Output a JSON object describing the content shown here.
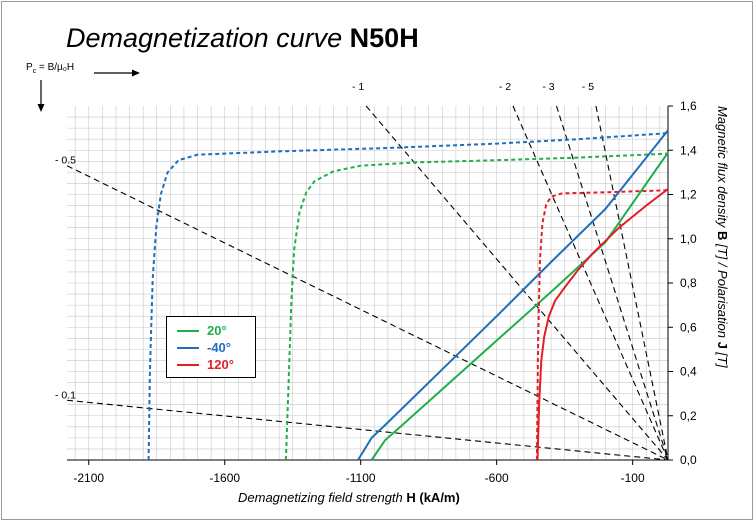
{
  "title": {
    "main": "Demagnetization curve",
    "grade": "N50H"
  },
  "permeance_axis_label": {
    "prefix": "P",
    "sub": "c",
    "rest": " = B/µ₀H"
  },
  "colors": {
    "20": "#1fae4b",
    "-40": "#1f6fb8",
    "120": "#e41e26",
    "load_lines": "#000000",
    "grid": "#c8c8c8"
  },
  "chart_data": {
    "type": "line",
    "title": "Demagnetization curve N50H",
    "xlabel": {
      "prefix": "Demagnetizing field strength ",
      "bold": "H",
      "suffix": " (kA/m)"
    },
    "ylabel": {
      "prefix": "Magnetic flux density ",
      "bold1": "B",
      "mid": " [T] / Polarisation ",
      "bold2": "J",
      "suffix": " [T]"
    },
    "xlim": [
      -2180,
      30
    ],
    "ylim": [
      0,
      1.6
    ],
    "x_ticks": [
      {
        "value": -2100,
        "label": "-2100"
      },
      {
        "value": -1600,
        "label": "-1600"
      },
      {
        "value": -1100,
        "label": "-1100"
      },
      {
        "value": -600,
        "label": "-600"
      },
      {
        "value": -100,
        "label": "-100"
      }
    ],
    "y_ticks": [
      {
        "value": 0,
        "label": "0,0"
      },
      {
        "value": 0.2,
        "label": "0,2"
      },
      {
        "value": 0.4,
        "label": "0,4"
      },
      {
        "value": 0.6,
        "label": "0,6"
      },
      {
        "value": 0.8,
        "label": "0,8"
      },
      {
        "value": 1.0,
        "label": "1,0"
      },
      {
        "value": 1.2,
        "label": "1,2"
      },
      {
        "value": 1.4,
        "label": "1,4"
      },
      {
        "value": 1.6,
        "label": "1,6"
      }
    ],
    "grid": true,
    "legend": {
      "position": "left-middle",
      "entries": [
        "20°",
        "-40°",
        "120°"
      ]
    },
    "series": [
      {
        "name": "20°",
        "colorKey": "20",
        "kind": "B",
        "dash": false,
        "points": [
          [
            -1060,
            0
          ],
          [
            -1010,
            0.09
          ],
          [
            -950,
            0.155
          ],
          [
            -800,
            0.32
          ],
          [
            -600,
            0.54
          ],
          [
            -400,
            0.76
          ],
          [
            -200,
            0.985
          ],
          [
            30,
            1.39
          ]
        ]
      },
      {
        "name": "20°",
        "colorKey": "20",
        "kind": "J",
        "dash": true,
        "points": [
          [
            -1375,
            0
          ],
          [
            -1365,
            0.35
          ],
          [
            -1355,
            0.72
          ],
          [
            -1345,
            0.95
          ],
          [
            -1325,
            1.12
          ],
          [
            -1300,
            1.21
          ],
          [
            -1270,
            1.26
          ],
          [
            -1200,
            1.305
          ],
          [
            -1100,
            1.33
          ],
          [
            -900,
            1.345
          ],
          [
            -600,
            1.355
          ],
          [
            -300,
            1.367
          ],
          [
            0,
            1.383
          ],
          [
            30,
            1.385
          ]
        ]
      },
      {
        "name": "-40°",
        "colorKey": "-40",
        "kind": "B",
        "dash": false,
        "points": [
          [
            -1110,
            0
          ],
          [
            -1060,
            0.1
          ],
          [
            -1000,
            0.17
          ],
          [
            -800,
            0.41
          ],
          [
            -600,
            0.65
          ],
          [
            -400,
            0.895
          ],
          [
            -200,
            1.135
          ],
          [
            30,
            1.49
          ]
        ]
      },
      {
        "name": "-40°",
        "colorKey": "-40",
        "kind": "J",
        "dash": true,
        "points": [
          [
            -1880,
            0
          ],
          [
            -1875,
            0.4
          ],
          [
            -1865,
            0.82
          ],
          [
            -1852,
            1.05
          ],
          [
            -1835,
            1.2
          ],
          [
            -1810,
            1.3
          ],
          [
            -1770,
            1.355
          ],
          [
            -1700,
            1.38
          ],
          [
            -1400,
            1.395
          ],
          [
            -1000,
            1.41
          ],
          [
            -600,
            1.43
          ],
          [
            -300,
            1.45
          ],
          [
            0,
            1.475
          ],
          [
            30,
            1.478
          ]
        ]
      },
      {
        "name": "120°",
        "colorKey": "120",
        "kind": "B",
        "dash": false,
        "points": [
          [
            -450,
            0
          ],
          [
            -444,
            0.25
          ],
          [
            -436,
            0.45
          ],
          [
            -425,
            0.56
          ],
          [
            -408,
            0.65
          ],
          [
            -385,
            0.72
          ],
          [
            -350,
            0.78
          ],
          [
            -300,
            0.86
          ],
          [
            -250,
            0.93
          ],
          [
            -150,
            1.05
          ],
          [
            -50,
            1.15
          ],
          [
            30,
            1.225
          ]
        ]
      },
      {
        "name": "120°",
        "colorKey": "120",
        "kind": "J",
        "dash": true,
        "points": [
          [
            -452,
            0
          ],
          [
            -448,
            0.5
          ],
          [
            -441,
            0.9
          ],
          [
            -432,
            1.07
          ],
          [
            -418,
            1.155
          ],
          [
            -400,
            1.19
          ],
          [
            -360,
            1.205
          ],
          [
            -200,
            1.21
          ],
          [
            0,
            1.218
          ],
          [
            30,
            1.22
          ]
        ]
      }
    ],
    "load_lines": [
      {
        "label": "- 0.5",
        "label_side": "left",
        "points": [
          [
            -2180,
            1.33
          ],
          [
            30,
            0
          ]
        ]
      },
      {
        "label": "- 0.1",
        "label_side": "left",
        "points": [
          [
            -2180,
            0.27
          ],
          [
            30,
            0
          ]
        ]
      },
      {
        "label": "- 1",
        "label_side": "top",
        "points": [
          [
            -1080,
            1.6
          ],
          [
            30,
            0
          ]
        ]
      },
      {
        "label": "- 2",
        "label_side": "top",
        "points": [
          [
            -540,
            1.6
          ],
          [
            30,
            0
          ]
        ]
      },
      {
        "label": "- 3",
        "label_side": "top",
        "points": [
          [
            -380,
            1.6
          ],
          [
            30,
            0
          ]
        ]
      },
      {
        "label": "- 5",
        "label_side": "top",
        "points": [
          [
            -235,
            1.6
          ],
          [
            30,
            0
          ]
        ]
      }
    ]
  }
}
